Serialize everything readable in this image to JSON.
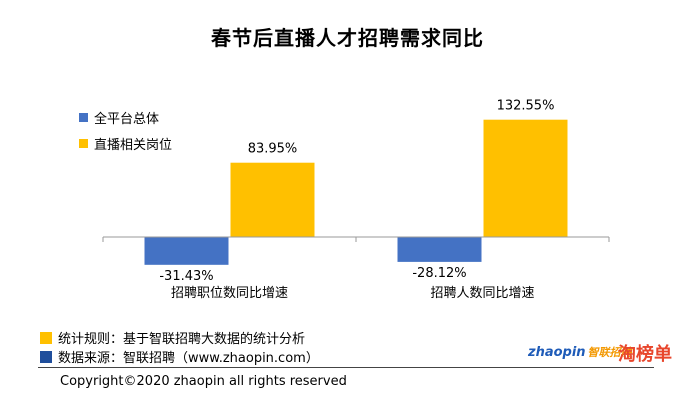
{
  "chart_data": {
    "type": "bar",
    "title": "春节后直播人才招聘需求同比",
    "categories": [
      "招聘职位数同比增速",
      "招聘人数同比增速"
    ],
    "series": [
      {
        "name": "全平台总体",
        "values": [
          -31.43,
          -28.12
        ],
        "labels": [
          "-31.43%",
          "-28.12%"
        ],
        "color": "#4472c4"
      },
      {
        "name": "直播相关岗位",
        "values": [
          83.95,
          132.55
        ],
        "labels": [
          "83.95%",
          "132.55%"
        ],
        "color": "#ffc000"
      }
    ],
    "ylim": [
      -40,
      140
    ],
    "grid": false,
    "legend": "top-left"
  },
  "footer": {
    "rule_text": "统计规则：基于智联招聘大数据的统计分析",
    "rule_color": "#ffc000",
    "source_text": "数据来源：智联招聘（www.zhaopin.com）",
    "source_color": "#1f4e9c",
    "copyright": "Copyright©2020 zhaopin all rights reserved"
  },
  "logos": {
    "zhaopin": "zhaopin",
    "zhaopin_cn": "智联招聘",
    "taobang": "淘榜单"
  }
}
